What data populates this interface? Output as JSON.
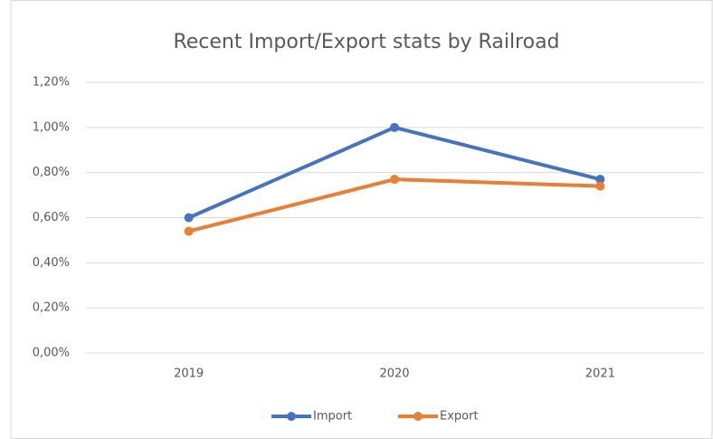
{
  "chart_data": {
    "type": "line",
    "title": "Recent Import/Export stats by Railroad",
    "categories": [
      "2019",
      "2020",
      "2021"
    ],
    "series": [
      {
        "name": "Import",
        "color": "#4472c4",
        "values": [
          0.6,
          1.0,
          0.77
        ]
      },
      {
        "name": "Export",
        "color": "#ed7d31",
        "values": [
          0.54,
          0.77,
          0.74
        ]
      }
    ],
    "ylim": [
      0,
      1.2
    ],
    "yticks": [
      {
        "value": 0,
        "label": "0,00%"
      },
      {
        "value": 0.2,
        "label": "0,20%"
      },
      {
        "value": 0.4,
        "label": "0,40%"
      },
      {
        "value": 0.6,
        "label": "0,60%"
      },
      {
        "value": 0.8,
        "label": "0,80%"
      },
      {
        "value": 1.0,
        "label": "1,00%"
      },
      {
        "value": 1.2,
        "label": "1,20%"
      }
    ],
    "grid": true,
    "legend": "bottom"
  }
}
